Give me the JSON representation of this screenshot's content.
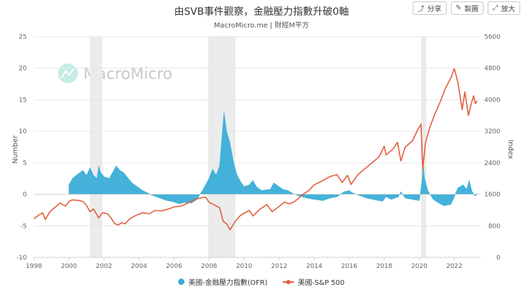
{
  "header": {
    "title": "由SVB事件觀察，金融壓力指數升破0軸",
    "subtitle": "MacroMicro.me | 財經M平方"
  },
  "toolbar": {
    "share_label": "分享",
    "copy_label": "製圖",
    "expand_label": "放大"
  },
  "watermark": "MacroMicro",
  "colors": {
    "ofr": "#3aaed8",
    "spx": "#e25c3d",
    "recession": "#ebebeb",
    "watermark_icon": "#9fe0d6"
  },
  "chart_data": {
    "type": "area+line",
    "x_ticks": [
      "1998",
      "2000",
      "2002",
      "2004",
      "2006",
      "2008",
      "2010",
      "2012",
      "2014",
      "2016",
      "2018",
      "2020",
      "2022"
    ],
    "xlim": [
      1998,
      2023.5
    ],
    "left_axis": {
      "label": "Number",
      "ylim": [
        -10,
        25
      ],
      "ticks": [
        -10,
        -5,
        0,
        5,
        10,
        15,
        20,
        25
      ]
    },
    "right_axis": {
      "label": "Index",
      "ylim": [
        0,
        5600
      ],
      "ticks": [
        0,
        800,
        1600,
        2400,
        3200,
        4000,
        4800,
        5600
      ]
    },
    "recessions": [
      [
        2001.2,
        2001.9
      ],
      [
        2007.95,
        2009.5
      ],
      [
        2020.1,
        2020.4
      ]
    ],
    "series": [
      {
        "name": "美國-金融壓力指數(OFR)",
        "axis": "left",
        "style": "area",
        "points": [
          [
            2000.0,
            1.5
          ],
          [
            2000.2,
            2.5
          ],
          [
            2000.5,
            3.2
          ],
          [
            2000.8,
            3.8
          ],
          [
            2001.0,
            3.0
          ],
          [
            2001.2,
            4.2
          ],
          [
            2001.4,
            3.0
          ],
          [
            2001.6,
            2.5
          ],
          [
            2001.7,
            4.5
          ],
          [
            2001.8,
            3.5
          ],
          [
            2002.0,
            2.8
          ],
          [
            2002.3,
            2.5
          ],
          [
            2002.5,
            3.5
          ],
          [
            2002.7,
            4.5
          ],
          [
            2002.9,
            3.8
          ],
          [
            2003.1,
            3.5
          ],
          [
            2003.3,
            2.8
          ],
          [
            2003.6,
            1.8
          ],
          [
            2003.9,
            1.2
          ],
          [
            2004.2,
            0.6
          ],
          [
            2004.5,
            0.2
          ],
          [
            2004.8,
            -0.2
          ],
          [
            2005.2,
            -0.6
          ],
          [
            2005.6,
            -1.0
          ],
          [
            2006.0,
            -1.2
          ],
          [
            2006.3,
            -1.5
          ],
          [
            2006.6,
            -1.3
          ],
          [
            2007.0,
            -1.4
          ],
          [
            2007.3,
            -0.8
          ],
          [
            2007.6,
            0.5
          ],
          [
            2007.8,
            1.5
          ],
          [
            2008.0,
            2.5
          ],
          [
            2008.2,
            4.0
          ],
          [
            2008.4,
            3.0
          ],
          [
            2008.6,
            4.5
          ],
          [
            2008.75,
            9.5
          ],
          [
            2008.85,
            13.0
          ],
          [
            2009.0,
            10.0
          ],
          [
            2009.2,
            8.0
          ],
          [
            2009.4,
            5.0
          ],
          [
            2009.6,
            3.0
          ],
          [
            2009.8,
            2.0
          ],
          [
            2010.0,
            1.2
          ],
          [
            2010.3,
            1.5
          ],
          [
            2010.5,
            2.2
          ],
          [
            2010.7,
            1.2
          ],
          [
            2011.0,
            0.6
          ],
          [
            2011.5,
            0.8
          ],
          [
            2011.7,
            1.8
          ],
          [
            2011.9,
            1.4
          ],
          [
            2012.2,
            0.8
          ],
          [
            2012.5,
            0.6
          ],
          [
            2012.8,
            0.1
          ],
          [
            2013.2,
            -0.3
          ],
          [
            2013.6,
            -0.6
          ],
          [
            2014.0,
            -0.8
          ],
          [
            2014.5,
            -1.0
          ],
          [
            2014.9,
            -0.6
          ],
          [
            2015.3,
            -0.4
          ],
          [
            2015.7,
            0.4
          ],
          [
            2016.0,
            0.6
          ],
          [
            2016.2,
            0.2
          ],
          [
            2016.6,
            -0.2
          ],
          [
            2017.0,
            -0.6
          ],
          [
            2017.5,
            -0.9
          ],
          [
            2017.9,
            -1.1
          ],
          [
            2018.1,
            -0.4
          ],
          [
            2018.4,
            -0.8
          ],
          [
            2018.8,
            -0.4
          ],
          [
            2018.95,
            0.4
          ],
          [
            2019.2,
            -0.6
          ],
          [
            2019.6,
            -0.8
          ],
          [
            2020.0,
            -1.0
          ],
          [
            2020.15,
            2.0
          ],
          [
            2020.22,
            4.8
          ],
          [
            2020.3,
            2.5
          ],
          [
            2020.5,
            0.5
          ],
          [
            2020.8,
            -0.8
          ],
          [
            2021.0,
            -1.2
          ],
          [
            2021.4,
            -1.8
          ],
          [
            2021.8,
            -1.6
          ],
          [
            2022.0,
            -0.4
          ],
          [
            2022.2,
            1.0
          ],
          [
            2022.5,
            1.5
          ],
          [
            2022.7,
            0.8
          ],
          [
            2022.85,
            2.2
          ],
          [
            2023.0,
            0.5
          ],
          [
            2023.2,
            -0.3
          ],
          [
            2023.3,
            0.2
          ]
        ]
      },
      {
        "name": "美國-S&P 500",
        "axis": "right",
        "style": "line",
        "points": [
          [
            1998.0,
            980
          ],
          [
            1998.3,
            1080
          ],
          [
            1998.5,
            1130
          ],
          [
            1998.65,
            960
          ],
          [
            1998.9,
            1150
          ],
          [
            1999.2,
            1270
          ],
          [
            1999.5,
            1380
          ],
          [
            1999.8,
            1300
          ],
          [
            2000.0,
            1420
          ],
          [
            2000.2,
            1460
          ],
          [
            2000.5,
            1450
          ],
          [
            2000.8,
            1420
          ],
          [
            2001.0,
            1320
          ],
          [
            2001.2,
            1160
          ],
          [
            2001.4,
            1230
          ],
          [
            2001.7,
            1000
          ],
          [
            2001.9,
            1130
          ],
          [
            2002.2,
            1110
          ],
          [
            2002.4,
            1000
          ],
          [
            2002.6,
            860
          ],
          [
            2002.8,
            820
          ],
          [
            2003.0,
            880
          ],
          [
            2003.2,
            850
          ],
          [
            2003.5,
            990
          ],
          [
            2003.9,
            1080
          ],
          [
            2004.2,
            1130
          ],
          [
            2004.6,
            1110
          ],
          [
            2004.9,
            1190
          ],
          [
            2005.3,
            1180
          ],
          [
            2005.7,
            1230
          ],
          [
            2006.0,
            1280
          ],
          [
            2006.4,
            1300
          ],
          [
            2006.8,
            1380
          ],
          [
            2007.0,
            1430
          ],
          [
            2007.4,
            1500
          ],
          [
            2007.8,
            1530
          ],
          [
            2008.0,
            1400
          ],
          [
            2008.3,
            1330
          ],
          [
            2008.6,
            1260
          ],
          [
            2008.8,
            920
          ],
          [
            2009.0,
            850
          ],
          [
            2009.2,
            700
          ],
          [
            2009.5,
            920
          ],
          [
            2009.8,
            1070
          ],
          [
            2010.0,
            1120
          ],
          [
            2010.3,
            1190
          ],
          [
            2010.5,
            1050
          ],
          [
            2010.9,
            1220
          ],
          [
            2011.3,
            1340
          ],
          [
            2011.6,
            1160
          ],
          [
            2011.9,
            1260
          ],
          [
            2012.3,
            1400
          ],
          [
            2012.6,
            1360
          ],
          [
            2012.9,
            1420
          ],
          [
            2013.3,
            1580
          ],
          [
            2013.7,
            1700
          ],
          [
            2014.0,
            1840
          ],
          [
            2014.5,
            1950
          ],
          [
            2014.9,
            2050
          ],
          [
            2015.3,
            2100
          ],
          [
            2015.6,
            1900
          ],
          [
            2015.9,
            2080
          ],
          [
            2016.1,
            1850
          ],
          [
            2016.5,
            2100
          ],
          [
            2016.9,
            2250
          ],
          [
            2017.3,
            2400
          ],
          [
            2017.7,
            2550
          ],
          [
            2018.0,
            2820
          ],
          [
            2018.1,
            2600
          ],
          [
            2018.5,
            2750
          ],
          [
            2018.75,
            2920
          ],
          [
            2018.95,
            2450
          ],
          [
            2019.2,
            2800
          ],
          [
            2019.6,
            2950
          ],
          [
            2019.9,
            3230
          ],
          [
            2020.1,
            3380
          ],
          [
            2020.2,
            2240
          ],
          [
            2020.35,
            2900
          ],
          [
            2020.6,
            3300
          ],
          [
            2020.9,
            3650
          ],
          [
            2021.2,
            3950
          ],
          [
            2021.5,
            4300
          ],
          [
            2021.8,
            4550
          ],
          [
            2022.0,
            4790
          ],
          [
            2022.2,
            4450
          ],
          [
            2022.45,
            3750
          ],
          [
            2022.6,
            4200
          ],
          [
            2022.8,
            3600
          ],
          [
            2023.0,
            3950
          ],
          [
            2023.1,
            4100
          ],
          [
            2023.2,
            3900
          ],
          [
            2023.3,
            3970
          ]
        ]
      }
    ]
  }
}
